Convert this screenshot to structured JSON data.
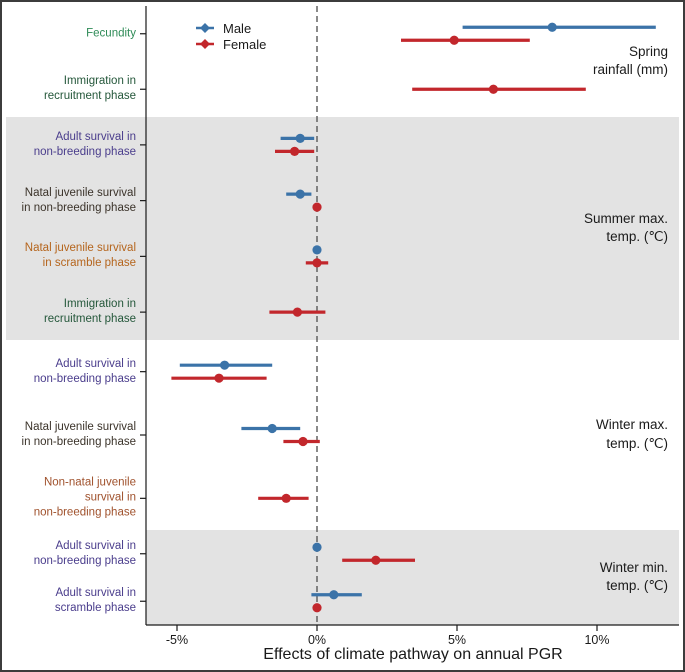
{
  "figure": {
    "border_color": "#3c3c3c",
    "background": "#ffffff"
  },
  "legend": {
    "items": [
      {
        "id": "male",
        "label": "Male",
        "color": "#3b73a8",
        "marker": "diamond-on-line-icon"
      },
      {
        "id": "female",
        "label": "Female",
        "color": "#c2272c",
        "marker": "diamond-on-line-icon"
      }
    ]
  },
  "x_axis": {
    "title": "Effects of climate pathway on annual PGR",
    "ticks": [
      {
        "value": -5,
        "label": "-5%"
      },
      {
        "value": 0,
        "label": "0%"
      },
      {
        "value": 5,
        "label": "5%"
      },
      {
        "value": 10,
        "label": "10%"
      }
    ]
  },
  "colors": {
    "male": "#3b73a8",
    "female": "#c2272c",
    "band_shade": "#e3e3e3",
    "zero_line": "#595959",
    "axis": "#1a1a1a",
    "label_green": "#2e8b57",
    "label_dark_green": "#24573a",
    "label_purple": "#4a3d8c",
    "label_dark": "#3b332a",
    "label_orange": "#b5651d",
    "label_brown": "#a0522d"
  },
  "chart_data": {
    "type": "pointrange",
    "title": "",
    "xlabel": "Effects of climate pathway on annual PGR",
    "ylabel": "",
    "xlim": [
      -6.1,
      13.0
    ],
    "x_tick_values": [
      -5,
      0,
      5,
      10
    ],
    "zero_reference_line": 0,
    "units": "percent effect on annual PGR",
    "series_names": [
      "Male",
      "Female"
    ],
    "groups": [
      {
        "label_lines": [
          "Spring",
          "rainfall (mm)"
        ],
        "shaded": false,
        "full_width_shade": false,
        "rows": [
          {
            "label_lines": [
              "Fecundity"
            ],
            "label_color_key": "label_green",
            "male": {
              "est": 8.4,
              "lo": 5.2,
              "hi": 12.1
            },
            "female": {
              "est": 4.9,
              "lo": 3.0,
              "hi": 7.6
            }
          },
          {
            "label_lines": [
              "Immigration in",
              "recruitment phase"
            ],
            "label_color_key": "label_dark_green",
            "female": {
              "est": 6.3,
              "lo": 3.4,
              "hi": 9.6
            }
          }
        ]
      },
      {
        "label_lines": [
          "Summer max.",
          "temp. (℃)"
        ],
        "shaded": true,
        "full_width_shade": true,
        "rows": [
          {
            "label_lines": [
              "Adult survival in",
              "non-breeding phase"
            ],
            "label_color_key": "label_purple",
            "male": {
              "est": -0.6,
              "lo": -1.3,
              "hi": -0.1
            },
            "female": {
              "est": -0.8,
              "lo": -1.5,
              "hi": -0.1
            }
          },
          {
            "label_lines": [
              "Natal juvenile survival",
              "in non-breeding phase"
            ],
            "label_color_key": "label_dark",
            "male": {
              "est": -0.6,
              "lo": -1.1,
              "hi": -0.2
            },
            "female": {
              "est": 0.0,
              "lo": -0.1,
              "hi": 0.1
            }
          },
          {
            "label_lines": [
              "Natal juvenile survival",
              "in scramble phase"
            ],
            "label_color_key": "label_orange",
            "male": {
              "est": 0.0,
              "lo": -0.1,
              "hi": 0.1
            },
            "female": {
              "est": 0.0,
              "lo": -0.4,
              "hi": 0.4
            }
          },
          {
            "label_lines": [
              "Immigration in",
              "recruitment phase"
            ],
            "label_color_key": "label_dark_green",
            "female": {
              "est": -0.7,
              "lo": -1.7,
              "hi": 0.3
            }
          }
        ]
      },
      {
        "label_lines": [
          "Winter max.",
          "temp. (℃)"
        ],
        "shaded": false,
        "full_width_shade": false,
        "rows": [
          {
            "label_lines": [
              "Adult survival in",
              "non-breeding phase"
            ],
            "label_color_key": "label_purple",
            "male": {
              "est": -3.3,
              "lo": -4.9,
              "hi": -1.6
            },
            "female": {
              "est": -3.5,
              "lo": -5.2,
              "hi": -1.8
            }
          },
          {
            "label_lines": [
              "Natal juvenile survival",
              "in non-breeding phase"
            ],
            "label_color_key": "label_dark",
            "male": {
              "est": -1.6,
              "lo": -2.7,
              "hi": -0.6
            },
            "female": {
              "est": -0.5,
              "lo": -1.2,
              "hi": 0.1
            }
          },
          {
            "label_lines": [
              "Non-natal juvenile",
              "survival in",
              "non-breeding phase"
            ],
            "label_color_key": "label_brown",
            "female": {
              "est": -1.1,
              "lo": -2.1,
              "hi": -0.3
            }
          }
        ]
      },
      {
        "label_lines": [
          "Winter min.",
          "temp. (℃)"
        ],
        "shaded": true,
        "full_width_shade": false,
        "rows": [
          {
            "label_lines": [
              "Adult survival in",
              "non-breeding phase"
            ],
            "label_color_key": "label_purple",
            "male": {
              "est": 0.0,
              "lo": -0.1,
              "hi": 0.1
            },
            "female": {
              "est": 2.1,
              "lo": 0.9,
              "hi": 3.5
            }
          },
          {
            "label_lines": [
              "Adult survival in",
              "scramble phase"
            ],
            "label_color_key": "label_purple",
            "male": {
              "est": 0.6,
              "lo": -0.2,
              "hi": 1.6
            },
            "female": {
              "est": 0.0,
              "lo": -0.1,
              "hi": 0.1
            }
          }
        ]
      }
    ]
  }
}
